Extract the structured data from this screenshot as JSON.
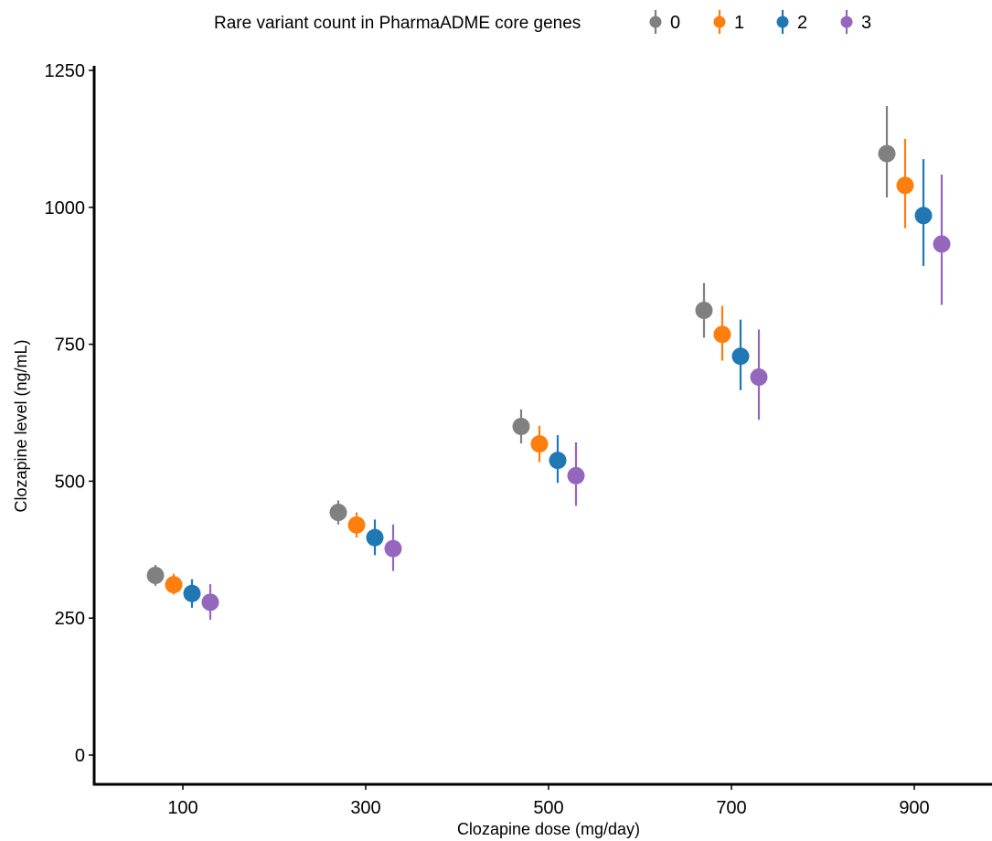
{
  "chart_data": {
    "type": "scatter",
    "subtype": "dodged point-range",
    "xlabel": "Clozapine dose (mg/day)",
    "ylabel": "Clozapine level (ng/mL)",
    "legend_title": "Rare variant count in PharmaADME core genes",
    "legend_position": "top",
    "categories": [
      "100",
      "300",
      "500",
      "700",
      "900"
    ],
    "ylim": [
      0,
      1250
    ],
    "yticks": [
      "0",
      "250",
      "500",
      "750",
      "1000",
      "1250"
    ],
    "grid": false,
    "series": [
      {
        "name": "0",
        "color": "#808080",
        "values": [
          328,
          443,
          600,
          812,
          1098
        ],
        "lower": [
          309,
          421,
          569,
          762,
          1018
        ],
        "upper": [
          347,
          465,
          631,
          862,
          1185
        ]
      },
      {
        "name": "1",
        "color": "#ff7f0e",
        "values": [
          311,
          420,
          568,
          768,
          1040
        ],
        "lower": [
          293,
          397,
          535,
          720,
          962
        ],
        "upper": [
          331,
          443,
          601,
          820,
          1125
        ]
      },
      {
        "name": "2",
        "color": "#1f77b4",
        "values": [
          295,
          397,
          538,
          728,
          985
        ],
        "lower": [
          269,
          365,
          497,
          666,
          893
        ],
        "upper": [
          321,
          430,
          584,
          795,
          1088
        ]
      },
      {
        "name": "3",
        "color": "#9467bd",
        "values": [
          279,
          377,
          510,
          690,
          933
        ],
        "lower": [
          247,
          336,
          455,
          612,
          822
        ],
        "upper": [
          312,
          421,
          571,
          777,
          1060
        ]
      }
    ]
  }
}
